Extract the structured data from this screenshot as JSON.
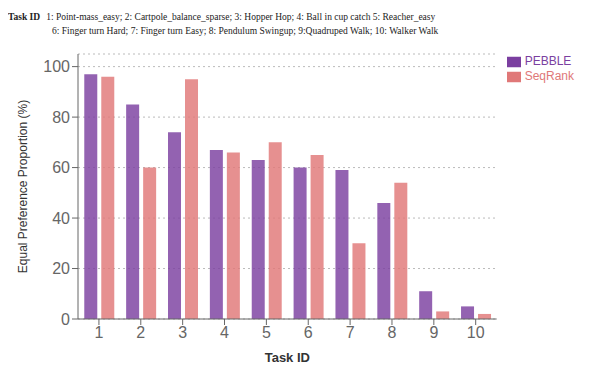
{
  "chart_data": {
    "type": "bar",
    "title": "Task ID",
    "subtitle": [
      "1: Point-mass_easy; 2: Cartpole_balance_sparse; 3: Hopper Hop; 4: Ball in cup catch 5: Reacher_easy",
      "6: Finger turn Hard; 7: Finger turn Easy; 8: Pendulum Swingup; 9:Quadruped Walk; 10: Walker Walk"
    ],
    "x_label": "Task ID",
    "y_label": "Equal Preference Proportion (%)",
    "categories": [
      1,
      2,
      3,
      4,
      5,
      6,
      7,
      8,
      9,
      10
    ],
    "series": [
      {
        "name": "PEBBLE",
        "color": "#7B3FA0",
        "values": [
          97,
          85,
          74,
          67,
          63,
          60,
          59,
          46,
          11,
          5
        ]
      },
      {
        "name": "SeqRank",
        "color": "#E07878",
        "values": [
          96,
          60,
          95,
          66,
          70,
          65,
          30,
          54,
          3,
          2
        ]
      }
    ],
    "ylim": [
      0,
      105
    ],
    "yticks": [
      0,
      20,
      40,
      60,
      80,
      100
    ],
    "grid": true,
    "legend": "upper right"
  }
}
